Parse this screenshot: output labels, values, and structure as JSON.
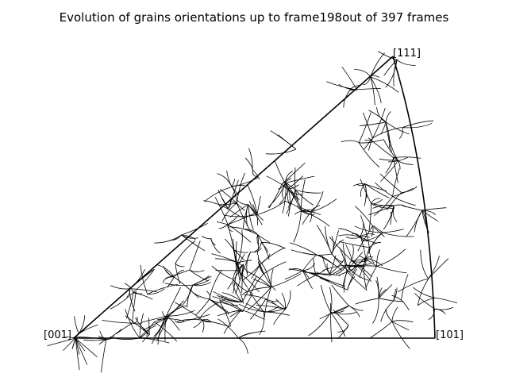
{
  "chart_data": {
    "type": "inverse-pole-figure-trajectories",
    "title": "Evolution of grains orientations up to frame198out of 397 frames",
    "corners": {
      "c001": "[001]",
      "c101": "[101]",
      "c111": "[111]"
    },
    "line_color": "#000000",
    "frame": 198,
    "total_frames": 397,
    "grid": false,
    "legend": "none"
  }
}
